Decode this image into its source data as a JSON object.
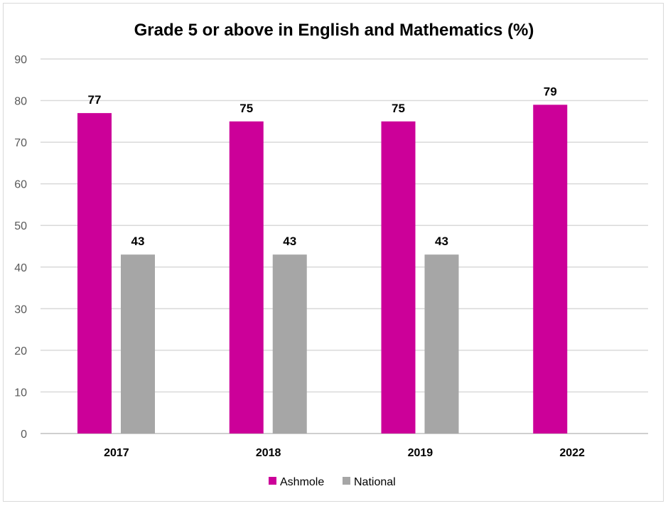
{
  "chart_data": {
    "type": "bar",
    "title": "Grade 5 or above in English and Mathematics (%)",
    "xlabel": "",
    "ylabel": "",
    "categories": [
      "2017",
      "2018",
      "2019",
      "2022"
    ],
    "series": [
      {
        "name": "Ashmole",
        "values": [
          77,
          75,
          75,
          79
        ],
        "color": "#CC0099"
      },
      {
        "name": "National",
        "values": [
          43,
          43,
          43,
          null
        ],
        "color": "#A6A6A6"
      }
    ],
    "ylim": [
      0,
      90
    ],
    "yticks": [
      0,
      10,
      20,
      30,
      40,
      50,
      60,
      70,
      80,
      90
    ],
    "grid": true,
    "legend": "bottom",
    "data_labels": true,
    "colors": {
      "gridline": "#d9d9d9",
      "axis": "#bfbfbf",
      "tick_text": "#595959"
    }
  }
}
